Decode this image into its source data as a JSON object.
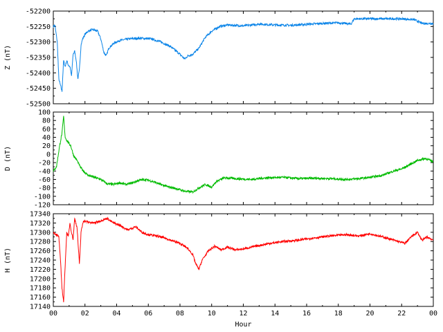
{
  "chart_data": [
    {
      "type": "line",
      "ylabel": "Z (nT)",
      "ylim": [
        -52500,
        -52200
      ],
      "yticks": [
        "-52200",
        "-52250",
        "-52300",
        "-52350",
        "-52400",
        "-52450",
        "-52500"
      ],
      "grid": false,
      "series": [
        {
          "color": "#0a84e8",
          "points": [
            [
              0,
              -52250
            ],
            [
              0.1,
              -52245
            ],
            [
              0.25,
              -52300
            ],
            [
              0.35,
              -52420
            ],
            [
              0.45,
              -52440
            ],
            [
              0.55,
              -52460
            ],
            [
              0.65,
              -52360
            ],
            [
              0.75,
              -52380
            ],
            [
              0.85,
              -52360
            ],
            [
              0.95,
              -52375
            ],
            [
              1.05,
              -52380
            ],
            [
              1.15,
              -52410
            ],
            [
              1.25,
              -52340
            ],
            [
              1.35,
              -52330
            ],
            [
              1.45,
              -52360
            ],
            [
              1.55,
              -52420
            ],
            [
              1.65,
              -52390
            ],
            [
              1.75,
              -52310
            ],
            [
              1.85,
              -52290
            ],
            [
              2.0,
              -52275
            ],
            [
              2.2,
              -52265
            ],
            [
              2.5,
              -52260
            ],
            [
              2.8,
              -52265
            ],
            [
              3.0,
              -52290
            ],
            [
              3.2,
              -52335
            ],
            [
              3.35,
              -52345
            ],
            [
              3.5,
              -52320
            ],
            [
              3.8,
              -52305
            ],
            [
              4.2,
              -52295
            ],
            [
              4.8,
              -52290
            ],
            [
              5.5,
              -52288
            ],
            [
              6.2,
              -52290
            ],
            [
              6.8,
              -52300
            ],
            [
              7.4,
              -52315
            ],
            [
              7.9,
              -52335
            ],
            [
              8.3,
              -52355
            ],
            [
              8.5,
              -52345
            ],
            [
              8.8,
              -52340
            ],
            [
              9.2,
              -52320
            ],
            [
              9.6,
              -52285
            ],
            [
              10.0,
              -52265
            ],
            [
              10.5,
              -52250
            ],
            [
              11.0,
              -52245
            ],
            [
              12.0,
              -52248
            ],
            [
              13.0,
              -52242
            ],
            [
              14.0,
              -52245
            ],
            [
              15.0,
              -52246
            ],
            [
              16.0,
              -52243
            ],
            [
              17.0,
              -52240
            ],
            [
              18.0,
              -52238
            ],
            [
              18.8,
              -52242
            ],
            [
              19.0,
              -52225
            ],
            [
              20.0,
              -52225
            ],
            [
              21.0,
              -52225
            ],
            [
              22.0,
              -52225
            ],
            [
              22.8,
              -52228
            ],
            [
              23.3,
              -52240
            ],
            [
              24.0,
              -52240
            ]
          ]
        }
      ]
    },
    {
      "type": "line",
      "ylabel": "D (nT)",
      "ylim": [
        -120,
        100
      ],
      "yticks": [
        "100",
        "80",
        "60",
        "40",
        "20",
        "0",
        "-20",
        "-40",
        "-60",
        "-80",
        "-100",
        "-120"
      ],
      "grid": false,
      "series": [
        {
          "color": "#00bb00",
          "points": [
            [
              0,
              -40
            ],
            [
              0.2,
              -30
            ],
            [
              0.4,
              20
            ],
            [
              0.55,
              50
            ],
            [
              0.65,
              90
            ],
            [
              0.75,
              40
            ],
            [
              0.9,
              30
            ],
            [
              1.1,
              20
            ],
            [
              1.3,
              -5
            ],
            [
              1.5,
              -15
            ],
            [
              1.7,
              -30
            ],
            [
              1.9,
              -40
            ],
            [
              2.2,
              -50
            ],
            [
              2.6,
              -55
            ],
            [
              3.0,
              -60
            ],
            [
              3.4,
              -70
            ],
            [
              3.8,
              -72
            ],
            [
              4.2,
              -68
            ],
            [
              4.6,
              -72
            ],
            [
              5.0,
              -68
            ],
            [
              5.4,
              -62
            ],
            [
              5.8,
              -60
            ],
            [
              6.3,
              -65
            ],
            [
              6.8,
              -72
            ],
            [
              7.3,
              -78
            ],
            [
              7.8,
              -82
            ],
            [
              8.3,
              -88
            ],
            [
              8.8,
              -90
            ],
            [
              9.2,
              -80
            ],
            [
              9.6,
              -72
            ],
            [
              10.0,
              -78
            ],
            [
              10.3,
              -65
            ],
            [
              10.8,
              -56
            ],
            [
              11.5,
              -58
            ],
            [
              12.5,
              -60
            ],
            [
              13.5,
              -56
            ],
            [
              14.5,
              -55
            ],
            [
              15.5,
              -58
            ],
            [
              16.5,
              -57
            ],
            [
              17.5,
              -58
            ],
            [
              18.5,
              -60
            ],
            [
              19.3,
              -58
            ],
            [
              20.0,
              -55
            ],
            [
              20.8,
              -50
            ],
            [
              21.5,
              -40
            ],
            [
              22.0,
              -35
            ],
            [
              22.5,
              -25
            ],
            [
              23.0,
              -15
            ],
            [
              23.5,
              -10
            ],
            [
              24.0,
              -18
            ]
          ]
        }
      ]
    },
    {
      "type": "line",
      "ylabel": "H (nT)",
      "ylim": [
        17140,
        17340
      ],
      "yticks": [
        "17340",
        "17320",
        "17300",
        "17280",
        "17260",
        "17240",
        "17220",
        "17200",
        "17180",
        "17160",
        "17140"
      ],
      "xlabel": "Hour",
      "xlim": [
        0,
        24
      ],
      "xticks": [
        "00",
        "02",
        "04",
        "06",
        "08",
        "10",
        "12",
        "14",
        "16",
        "18",
        "20",
        "22",
        "00"
      ],
      "grid": false,
      "series": [
        {
          "color": "#ff0000",
          "points": [
            [
              0,
              17300
            ],
            [
              0.2,
              17295
            ],
            [
              0.35,
              17290
            ],
            [
              0.45,
              17240
            ],
            [
              0.55,
              17180
            ],
            [
              0.65,
              17150
            ],
            [
              0.75,
              17230
            ],
            [
              0.85,
              17300
            ],
            [
              0.95,
              17290
            ],
            [
              1.05,
              17320
            ],
            [
              1.15,
              17300
            ],
            [
              1.25,
              17285
            ],
            [
              1.35,
              17330
            ],
            [
              1.5,
              17310
            ],
            [
              1.65,
              17230
            ],
            [
              1.75,
              17300
            ],
            [
              1.9,
              17325
            ],
            [
              2.2,
              17322
            ],
            [
              2.6,
              17320
            ],
            [
              3.0,
              17325
            ],
            [
              3.4,
              17330
            ],
            [
              3.8,
              17320
            ],
            [
              4.2,
              17315
            ],
            [
              4.7,
              17305
            ],
            [
              5.2,
              17312
            ],
            [
              5.6,
              17300
            ],
            [
              6.0,
              17295
            ],
            [
              6.5,
              17292
            ],
            [
              7.0,
              17288
            ],
            [
              7.5,
              17282
            ],
            [
              8.0,
              17276
            ],
            [
              8.5,
              17265
            ],
            [
              8.8,
              17252
            ],
            [
              9.0,
              17232
            ],
            [
              9.2,
              17220
            ],
            [
              9.4,
              17240
            ],
            [
              9.8,
              17260
            ],
            [
              10.2,
              17270
            ],
            [
              10.6,
              17262
            ],
            [
              11.0,
              17268
            ],
            [
              11.5,
              17262
            ],
            [
              12.0,
              17264
            ],
            [
              12.8,
              17270
            ],
            [
              13.5,
              17275
            ],
            [
              14.5,
              17280
            ],
            [
              15.5,
              17283
            ],
            [
              16.5,
              17288
            ],
            [
              17.5,
              17292
            ],
            [
              18.5,
              17295
            ],
            [
              19.3,
              17292
            ],
            [
              20.0,
              17297
            ],
            [
              20.8,
              17290
            ],
            [
              21.3,
              17285
            ],
            [
              21.8,
              17280
            ],
            [
              22.2,
              17276
            ],
            [
              22.6,
              17290
            ],
            [
              23.0,
              17300
            ],
            [
              23.3,
              17282
            ],
            [
              23.6,
              17290
            ],
            [
              24.0,
              17283
            ]
          ]
        }
      ]
    }
  ]
}
